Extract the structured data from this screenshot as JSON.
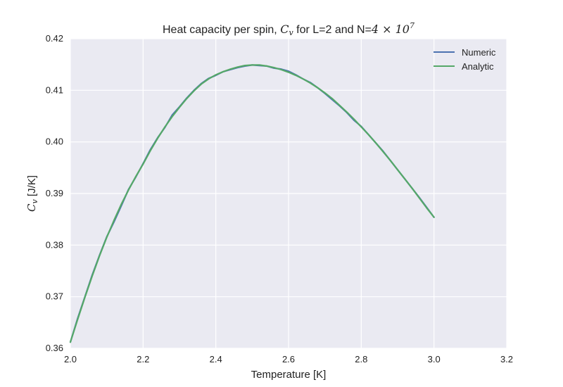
{
  "chart_data": {
    "type": "line",
    "title": {
      "prefix": "Heat capacity per spin, ",
      "var": "C",
      "var_sub": "v",
      "middle": " for L=2 and N=",
      "mult": "4 × 10",
      "exp": "7"
    },
    "xlabel": "Temperature [K]",
    "ylabel": {
      "var": "C",
      "var_sub": "v",
      "units": " [J/K]"
    },
    "xlim": [
      2.0,
      3.2
    ],
    "ylim": [
      0.36,
      0.42
    ],
    "xticks": [
      "2.0",
      "2.2",
      "2.4",
      "2.6",
      "2.8",
      "3.0",
      "3.2"
    ],
    "yticks": [
      "0.36",
      "0.37",
      "0.38",
      "0.39",
      "0.40",
      "0.41",
      "0.42"
    ],
    "grid": true,
    "legend_position": "top-right",
    "background_color": "#eaeaf2",
    "series": [
      {
        "name": "Numeric",
        "color": "#4c72b0",
        "x": [
          2.0,
          2.02,
          2.04,
          2.06,
          2.08,
          2.1,
          2.12,
          2.14,
          2.16,
          2.18,
          2.2,
          2.22,
          2.24,
          2.26,
          2.28,
          2.3,
          2.32,
          2.34,
          2.36,
          2.38,
          2.4,
          2.42,
          2.44,
          2.46,
          2.48,
          2.5,
          2.52,
          2.54,
          2.56,
          2.58,
          2.6,
          2.62,
          2.64,
          2.66,
          2.68,
          2.7,
          2.72,
          2.74,
          2.76,
          2.78,
          2.8,
          2.82,
          2.84,
          2.86,
          2.88,
          2.9,
          2.92,
          2.94,
          2.96,
          2.98,
          3.0
        ],
        "y": [
          0.3612,
          0.3658,
          0.37,
          0.3742,
          0.378,
          0.3816,
          0.3845,
          0.3876,
          0.3908,
          0.3932,
          0.3958,
          0.3985,
          0.4008,
          0.4028,
          0.4052,
          0.4068,
          0.4085,
          0.41,
          0.4113,
          0.4123,
          0.4129,
          0.4136,
          0.414,
          0.4144,
          0.4147,
          0.4149,
          0.4148,
          0.4147,
          0.4143,
          0.4141,
          0.4137,
          0.413,
          0.4122,
          0.4115,
          0.4105,
          0.4094,
          0.4082,
          0.407,
          0.4057,
          0.4042,
          0.403,
          0.4014,
          0.3998,
          0.3982,
          0.3964,
          0.3946,
          0.3928,
          0.391,
          0.3892,
          0.3873,
          0.3854
        ]
      },
      {
        "name": "Analytic",
        "color": "#55a868",
        "x": [
          2.0,
          2.02,
          2.04,
          2.06,
          2.08,
          2.1,
          2.12,
          2.14,
          2.16,
          2.18,
          2.2,
          2.22,
          2.24,
          2.26,
          2.28,
          2.3,
          2.32,
          2.34,
          2.36,
          2.38,
          2.4,
          2.42,
          2.44,
          2.46,
          2.48,
          2.5,
          2.52,
          2.54,
          2.56,
          2.58,
          2.6,
          2.62,
          2.64,
          2.66,
          2.68,
          2.7,
          2.72,
          2.74,
          2.76,
          2.78,
          2.8,
          2.82,
          2.84,
          2.86,
          2.88,
          2.9,
          2.92,
          2.94,
          2.96,
          2.98,
          3.0
        ],
        "y": [
          0.3612,
          0.3656,
          0.3699,
          0.374,
          0.3779,
          0.3815,
          0.3848,
          0.3879,
          0.3907,
          0.3933,
          0.3957,
          0.3983,
          0.4007,
          0.4029,
          0.4049,
          0.4067,
          0.4084,
          0.4099,
          0.4112,
          0.4122,
          0.413,
          0.4136,
          0.4141,
          0.4145,
          0.4148,
          0.4149,
          0.4149,
          0.4147,
          0.4144,
          0.414,
          0.4135,
          0.4129,
          0.4122,
          0.4114,
          0.4105,
          0.4095,
          0.4084,
          0.4071,
          0.4058,
          0.4044,
          0.4029,
          0.4014,
          0.3998,
          0.3981,
          0.3964,
          0.3946,
          0.3928,
          0.391,
          0.3891,
          0.3872,
          0.3854
        ]
      }
    ]
  }
}
